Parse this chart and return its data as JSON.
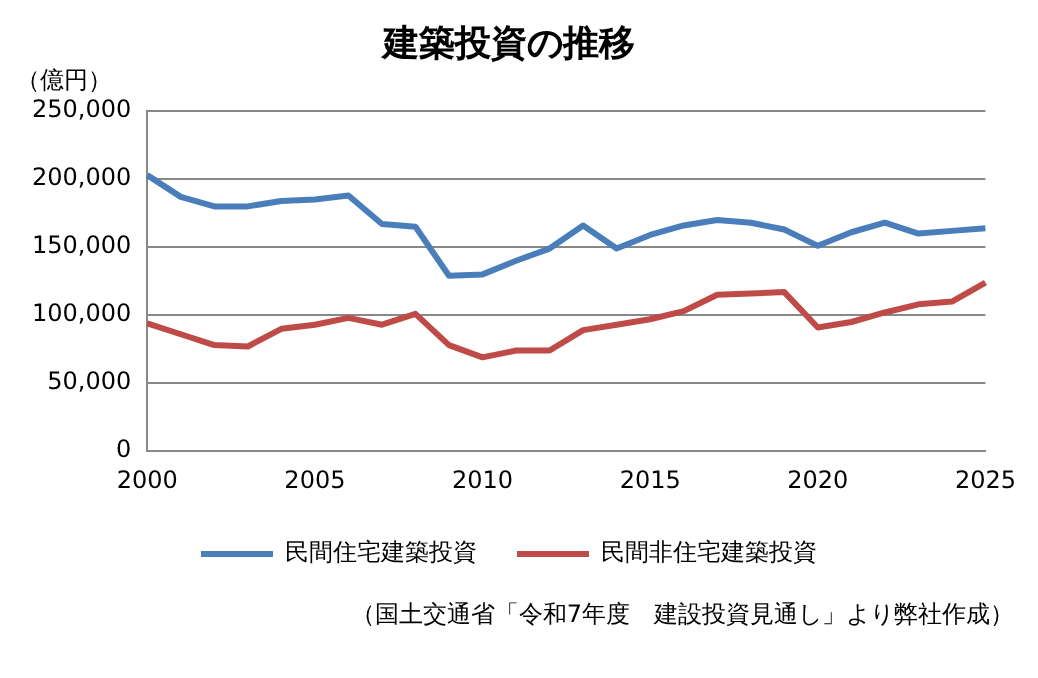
{
  "chart_data": {
    "type": "line",
    "title": "建築投資の推移",
    "ylabel": "（億円）",
    "categories": [
      "2000",
      null,
      null,
      null,
      null,
      "2005",
      null,
      null,
      null,
      null,
      "2010",
      null,
      null,
      null,
      null,
      "2015",
      null,
      null,
      null,
      null,
      "2020",
      null,
      null,
      null,
      null,
      "2025"
    ],
    "series": [
      {
        "name": "民間住宅建築投資",
        "color": "#4a7ebb",
        "values": [
          203000,
          187000,
          180000,
          180000,
          184000,
          185000,
          188000,
          167000,
          165000,
          129000,
          130000,
          140000,
          149000,
          166000,
          149000,
          159000,
          166000,
          170000,
          168000,
          163000,
          151000,
          161000,
          168000,
          160000,
          162000,
          164000
        ]
      },
      {
        "name": "民間非住宅建築投資",
        "color": "#be4b48",
        "values": [
          94000,
          86000,
          78000,
          77000,
          90000,
          93000,
          98000,
          93000,
          101000,
          78000,
          69000,
          74000,
          74000,
          89000,
          93000,
          97000,
          103000,
          115000,
          116000,
          117000,
          91000,
          95000,
          102000,
          108000,
          110000,
          124000
        ]
      }
    ],
    "ylim": [
      0,
      250000
    ],
    "yticks": [
      0,
      {
        "value": 50000,
        "label": "50,000"
      },
      {
        "value": 100000,
        "label": "100,000"
      },
      {
        "value": 150000,
        "label": "150,000"
      },
      {
        "value": 200000,
        "label": "200,000"
      },
      {
        "value": 250000,
        "label": "250,000"
      }
    ],
    "grid": "y",
    "legend": "bottom",
    "marker": "none",
    "line_style": "solid",
    "annotations": [
      "（国土交通省「令和7年度　建設投資見通し」より弊社作成）"
    ]
  }
}
